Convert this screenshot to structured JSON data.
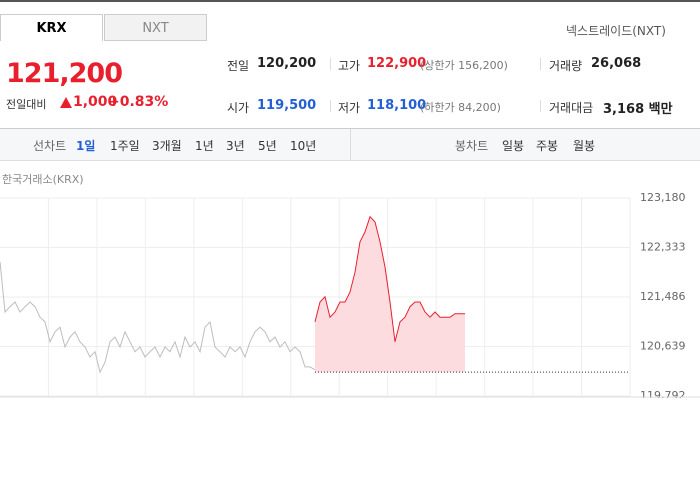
{
  "tabs": [
    "KRX",
    "NXT"
  ],
  "nxt_link": "넥스트레이드(NXT)",
  "price": "121,200",
  "change_label": "전일대비",
  "change": "1,000",
  "rate": "+0.83%",
  "stats": [
    [
      {
        "label": "전일",
        "value": "120,200"
      },
      {
        "label": "고가",
        "value": "122,900",
        "note": "(상한가 156,200)"
      },
      {
        "label": "거래량",
        "value": "26,068"
      }
    ],
    [
      {
        "label": "시가",
        "value": "119,500"
      },
      {
        "label": "저가",
        "value": "118,100",
        "note": "(하한가 84,200)"
      },
      {
        "label": "거래대금",
        "value": "3,168 백만"
      }
    ]
  ],
  "toolbar": {
    "line_chart": "선차트",
    "periods": [
      "1일",
      "1주일",
      "3개월",
      "1년",
      "3년",
      "5년",
      "10년"
    ],
    "candle_chart": "봉차트",
    "candles": [
      "일봉",
      "주봉",
      "월봉"
    ]
  },
  "chart_data": {
    "type": "line",
    "subtitle": "한국거래소(KRX)",
    "xlim": [
      0,
      126
    ],
    "ylim": [
      119792,
      123180
    ],
    "yticks": [
      {
        "value": 123180,
        "label": "123,180"
      },
      {
        "value": 122333,
        "label": "122,333"
      },
      {
        "value": 121486,
        "label": "121,486"
      },
      {
        "value": 120639,
        "label": "120,639"
      },
      {
        "value": 119792,
        "label": "119,792"
      }
    ],
    "grid": true,
    "reference_line": 120200,
    "series": [
      {
        "color": "#bdbdbd",
        "x": [
          0,
          1,
          2,
          3,
          4,
          5,
          6,
          7,
          8,
          9,
          10,
          11,
          12,
          13,
          14,
          15,
          16,
          17,
          18,
          19,
          20,
          21,
          22,
          23,
          24,
          25,
          26,
          27,
          28,
          29,
          30,
          31,
          32,
          33,
          34,
          35,
          36,
          37,
          38,
          39,
          40,
          41,
          42,
          43,
          44,
          45,
          46,
          47,
          48,
          49,
          50,
          51,
          52,
          53,
          54,
          55,
          56,
          57,
          58,
          59,
          60,
          61,
          62,
          63
        ],
        "values": [
          122090,
          121230,
          121320,
          121400,
          121230,
          121320,
          121400,
          121320,
          121140,
          121060,
          120720,
          120890,
          120970,
          120630,
          120800,
          120890,
          120720,
          120630,
          120460,
          120550,
          120200,
          120370,
          120720,
          120800,
          120630,
          120890,
          120720,
          120550,
          120630,
          120460,
          120550,
          120630,
          120460,
          120630,
          120550,
          120720,
          120460,
          120800,
          120630,
          120720,
          120550,
          120970,
          121060,
          120630,
          120550,
          120460,
          120630,
          120550,
          120630,
          120460,
          120720,
          120890,
          120970,
          120890,
          120720,
          120800,
          120630,
          120720,
          120550,
          120630,
          120550,
          120290,
          120290,
          120240
        ]
      },
      {
        "color": "#e8202e",
        "fill": "#fcdcdf",
        "x": [
          63,
          64,
          65,
          66,
          67,
          68,
          69,
          70,
          71,
          72,
          73,
          74,
          75,
          76,
          77,
          78,
          79,
          80,
          81,
          82,
          83,
          84,
          85,
          86,
          87,
          88,
          89,
          90,
          91,
          92,
          93
        ],
        "values": [
          121060,
          121400,
          121490,
          121140,
          121230,
          121400,
          121400,
          121570,
          121910,
          122430,
          122600,
          122860,
          122770,
          122430,
          122000,
          121400,
          120720,
          121060,
          121140,
          121320,
          121400,
          121400,
          121230,
          121140,
          121230,
          121140,
          121140,
          121140,
          121200,
          121200,
          121200
        ]
      }
    ]
  }
}
